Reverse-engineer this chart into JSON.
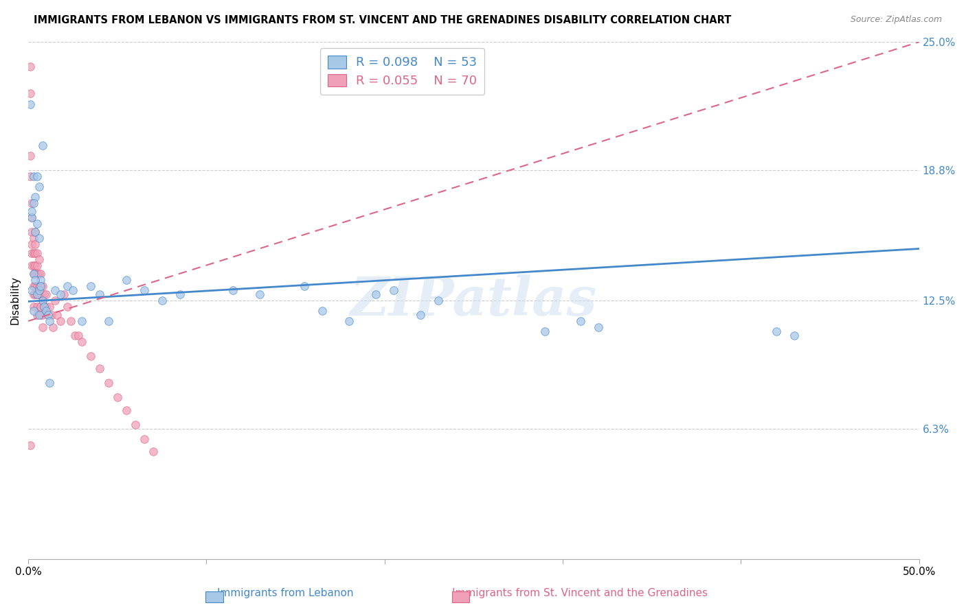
{
  "title": "IMMIGRANTS FROM LEBANON VS IMMIGRANTS FROM ST. VINCENT AND THE GRENADINES DISABILITY CORRELATION CHART",
  "source": "Source: ZipAtlas.com",
  "ylabel": "Disability",
  "xlim": [
    0.0,
    0.5
  ],
  "ylim": [
    0.0,
    0.25
  ],
  "x_ticks": [
    0.0,
    0.1,
    0.2,
    0.3,
    0.4,
    0.5
  ],
  "x_tick_labels": [
    "0.0%",
    "",
    "",
    "",
    "",
    "50.0%"
  ],
  "y_ticks_right": [
    0.25,
    0.188,
    0.125,
    0.063,
    0.0
  ],
  "y_tick_labels_right": [
    "25.0%",
    "18.8%",
    "12.5%",
    "6.3%",
    ""
  ],
  "legend_r1": "R = 0.098",
  "legend_n1": "N = 53",
  "legend_r2": "R = 0.055",
  "legend_n2": "N = 70",
  "color_lebanon": "#a8c8e8",
  "color_stv": "#f0a0b8",
  "line_lebanon_color": "#4488cc",
  "line_stv_color": "#dd6688",
  "watermark": "ZIPatlas",
  "background_color": "#ffffff",
  "scatter_size": 70,
  "lebanon_trendline": [
    0.1245,
    0.15
  ],
  "stv_trendline": [
    0.115,
    0.25
  ],
  "lebanon_x": [
    0.001,
    0.002,
    0.003,
    0.004,
    0.005,
    0.006,
    0.007,
    0.008,
    0.002,
    0.003,
    0.004,
    0.005,
    0.006,
    0.002,
    0.003,
    0.004,
    0.005,
    0.006,
    0.007,
    0.008,
    0.009,
    0.01,
    0.011,
    0.012,
    0.015,
    0.018,
    0.022,
    0.025,
    0.03,
    0.035,
    0.04,
    0.045,
    0.055,
    0.065,
    0.075,
    0.085,
    0.115,
    0.13,
    0.155,
    0.165,
    0.18,
    0.195,
    0.205,
    0.22,
    0.23,
    0.29,
    0.31,
    0.32,
    0.42,
    0.43,
    0.003,
    0.006,
    0.012
  ],
  "lebanon_y": [
    0.22,
    0.165,
    0.185,
    0.175,
    0.185,
    0.18,
    0.135,
    0.2,
    0.168,
    0.172,
    0.158,
    0.162,
    0.155,
    0.13,
    0.138,
    0.135,
    0.128,
    0.13,
    0.132,
    0.125,
    0.122,
    0.12,
    0.118,
    0.115,
    0.13,
    0.128,
    0.132,
    0.13,
    0.115,
    0.132,
    0.128,
    0.115,
    0.135,
    0.13,
    0.125,
    0.128,
    0.13,
    0.128,
    0.132,
    0.12,
    0.115,
    0.128,
    0.13,
    0.118,
    0.125,
    0.11,
    0.115,
    0.112,
    0.11,
    0.108,
    0.12,
    0.118,
    0.085
  ],
  "stv_x": [
    0.001,
    0.001,
    0.001,
    0.001,
    0.001,
    0.002,
    0.002,
    0.002,
    0.002,
    0.002,
    0.002,
    0.003,
    0.003,
    0.003,
    0.003,
    0.003,
    0.003,
    0.003,
    0.004,
    0.004,
    0.004,
    0.004,
    0.004,
    0.004,
    0.004,
    0.005,
    0.005,
    0.005,
    0.005,
    0.005,
    0.005,
    0.005,
    0.006,
    0.006,
    0.006,
    0.006,
    0.007,
    0.007,
    0.007,
    0.007,
    0.007,
    0.008,
    0.008,
    0.008,
    0.008,
    0.009,
    0.009,
    0.01,
    0.01,
    0.011,
    0.012,
    0.013,
    0.014,
    0.015,
    0.016,
    0.018,
    0.02,
    0.022,
    0.024,
    0.026,
    0.028,
    0.03,
    0.035,
    0.04,
    0.045,
    0.05,
    0.055,
    0.06,
    0.065,
    0.07
  ],
  "stv_y": [
    0.238,
    0.225,
    0.195,
    0.185,
    0.055,
    0.172,
    0.165,
    0.158,
    0.152,
    0.148,
    0.142,
    0.155,
    0.148,
    0.142,
    0.138,
    0.132,
    0.128,
    0.122,
    0.158,
    0.152,
    0.148,
    0.142,
    0.138,
    0.132,
    0.128,
    0.148,
    0.142,
    0.138,
    0.132,
    0.128,
    0.122,
    0.118,
    0.145,
    0.138,
    0.132,
    0.128,
    0.138,
    0.132,
    0.128,
    0.122,
    0.118,
    0.132,
    0.125,
    0.118,
    0.112,
    0.128,
    0.122,
    0.128,
    0.122,
    0.118,
    0.122,
    0.118,
    0.112,
    0.125,
    0.118,
    0.115,
    0.128,
    0.122,
    0.115,
    0.108,
    0.108,
    0.105,
    0.098,
    0.092,
    0.085,
    0.078,
    0.072,
    0.065,
    0.058,
    0.052
  ]
}
